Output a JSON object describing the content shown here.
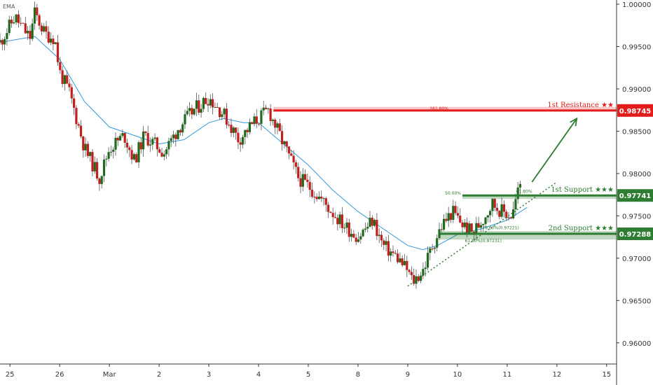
{
  "indicator_label": "EMA",
  "chart_data": {
    "type": "candlestick",
    "ylim": [
      0.9575,
      1.0005
    ],
    "y_ticks": [
      "1.00000",
      "0.99500",
      "0.99000",
      "0.98500",
      "0.98000",
      "0.97500",
      "0.97000",
      "0.96500",
      "0.96000"
    ],
    "y_tick_values": [
      1.0,
      0.995,
      0.99,
      0.985,
      0.98,
      0.975,
      0.97,
      0.965,
      0.96
    ],
    "x_ticks": [
      "25",
      "26",
      "Mar",
      "2",
      "3",
      "4",
      "5",
      "8",
      "9",
      "10",
      "11",
      "12",
      "15"
    ],
    "x_tick_positions": [
      0,
      1,
      2,
      3,
      4,
      5,
      6,
      7,
      8,
      9,
      10,
      11,
      12
    ],
    "x_range": [
      -0.2,
      12.2
    ],
    "grid": false,
    "colors": {
      "up": "#1e6b1e",
      "down": "#c41e1e",
      "ema": "#3399dd",
      "resistance": "#e21b1b",
      "support": "#2e7d32"
    },
    "price_path": [
      [
        -0.2,
        0.9955
      ],
      [
        0.1,
        0.9985
      ],
      [
        0.4,
        0.996
      ],
      [
        0.5,
        0.999
      ],
      [
        0.7,
        0.9965
      ],
      [
        0.9,
        0.996
      ],
      [
        1.0,
        0.992
      ],
      [
        1.2,
        0.9895
      ],
      [
        1.5,
        0.983
      ],
      [
        1.8,
        0.9795
      ],
      [
        2.0,
        0.983
      ],
      [
        2.3,
        0.9845
      ],
      [
        2.5,
        0.9815
      ],
      [
        2.7,
        0.9845
      ],
      [
        2.9,
        0.9835
      ],
      [
        3.1,
        0.9825
      ],
      [
        3.4,
        0.9855
      ],
      [
        3.7,
        0.9875
      ],
      [
        4.0,
        0.989
      ],
      [
        4.3,
        0.987
      ],
      [
        4.6,
        0.984
      ],
      [
        4.9,
        0.986
      ],
      [
        5.2,
        0.9875
      ],
      [
        5.5,
        0.9835
      ],
      [
        5.8,
        0.9795
      ],
      [
        6.1,
        0.978
      ],
      [
        6.4,
        0.976
      ],
      [
        6.7,
        0.974
      ],
      [
        7.0,
        0.9725
      ],
      [
        7.3,
        0.9745
      ],
      [
        7.5,
        0.9715
      ],
      [
        7.8,
        0.97
      ],
      [
        8.0,
        0.9685
      ],
      [
        8.1,
        0.9672
      ],
      [
        8.3,
        0.9685
      ],
      [
        8.5,
        0.9715
      ],
      [
        8.7,
        0.974
      ],
      [
        8.9,
        0.9755
      ],
      [
        9.1,
        0.974
      ],
      [
        9.3,
        0.973
      ],
      [
        9.5,
        0.9745
      ],
      [
        9.7,
        0.9765
      ],
      [
        9.9,
        0.9755
      ],
      [
        10.1,
        0.975
      ],
      [
        10.2,
        0.9775
      ],
      [
        10.3,
        0.9795
      ]
    ],
    "ema_path": [
      [
        -0.2,
        0.9955
      ],
      [
        0.5,
        0.9962
      ],
      [
        1.0,
        0.9935
      ],
      [
        1.5,
        0.9885
      ],
      [
        2.0,
        0.9855
      ],
      [
        2.5,
        0.9845
      ],
      [
        3.0,
        0.9835
      ],
      [
        3.5,
        0.984
      ],
      [
        4.0,
        0.986
      ],
      [
        4.3,
        0.9865
      ],
      [
        4.7,
        0.986
      ],
      [
        5.0,
        0.986
      ],
      [
        5.5,
        0.9835
      ],
      [
        6.0,
        0.981
      ],
      [
        6.5,
        0.978
      ],
      [
        7.0,
        0.9755
      ],
      [
        7.5,
        0.9735
      ],
      [
        8.0,
        0.9715
      ],
      [
        8.3,
        0.971
      ],
      [
        8.6,
        0.9715
      ],
      [
        9.0,
        0.9728
      ],
      [
        9.5,
        0.9735
      ],
      [
        10.0,
        0.9745
      ],
      [
        10.4,
        0.976
      ]
    ],
    "levels": [
      {
        "name": "1st Resistance ★★",
        "value": 0.98745,
        "badge": "0.98745",
        "fib": "161.80%",
        "kind": "resistance"
      },
      {
        "name": "1st Support ★★★",
        "value": 0.97741,
        "badge": "0.97741",
        "fib": "50.00%",
        "kind": "support"
      },
      {
        "name": "2nd Support ★★★",
        "value": 0.97288,
        "badge": "0.97288",
        "fib": "",
        "kind": "support"
      }
    ],
    "support_zones": [
      {
        "x_start": 9.1,
        "y_top": 0.9775,
        "y_bottom": 0.977
      },
      {
        "x_start": 8.65,
        "y_top": 0.9732,
        "y_bottom": 0.9722
      }
    ],
    "resistance_start_x": 5.3,
    "trendline": {
      "from": [
        8.0,
        0.9667
      ],
      "to": [
        11.0,
        0.979
      ]
    },
    "arrow": {
      "from": [
        10.5,
        0.979
      ],
      "to": [
        11.4,
        0.9865
      ]
    },
    "fib_extra_labels": [
      "61.80%",
      "78.60%(0.97221)",
      "61.80%(0.97231)"
    ]
  }
}
